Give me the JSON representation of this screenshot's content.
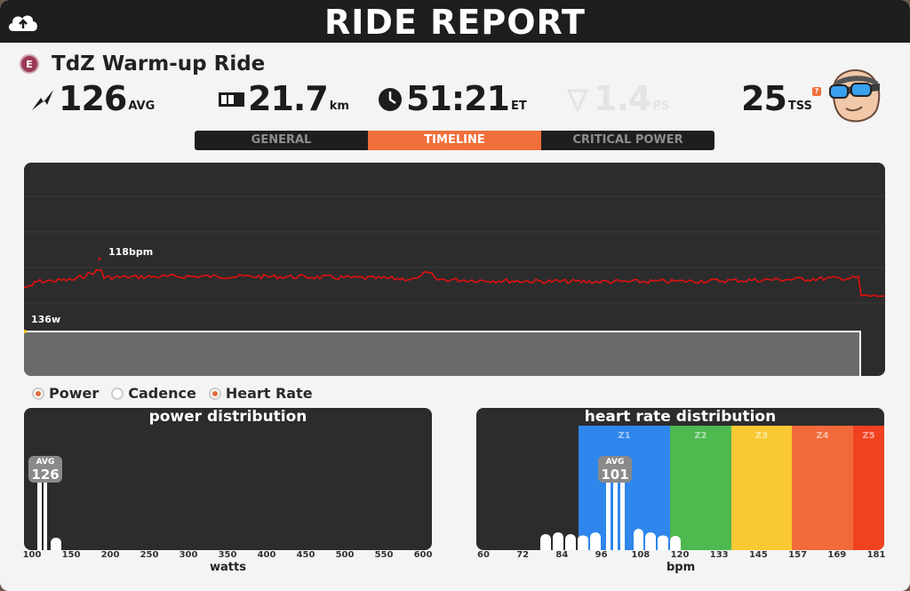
{
  "header": {
    "title": "RIDE REPORT"
  },
  "ride": {
    "badge": "E",
    "name": "TdZ Warm-up Ride"
  },
  "stats": {
    "power": {
      "value": "126",
      "unit": "AVG",
      "icon": "power-bolt-icon"
    },
    "distance": {
      "value": "21.7",
      "unit": "km",
      "icon": "odometer-icon"
    },
    "time": {
      "value": "51:21",
      "unit": "ET",
      "icon": "clock-icon"
    },
    "ps": {
      "value": "1.4",
      "unit": "PS",
      "icon": "shield-icon"
    },
    "tss": {
      "value": "25",
      "unit": "TSS",
      "info": "?"
    }
  },
  "tabs": [
    {
      "label": "GENERAL",
      "active": false
    },
    {
      "label": "TIMELINE",
      "active": true
    },
    {
      "label": "CRITICAL POWER",
      "active": false
    }
  ],
  "timeline": {
    "hr_peak_label": "118bpm",
    "power_label": "136w",
    "hr_color": "#e01010",
    "power_color": "#ffffff"
  },
  "legend": [
    {
      "label": "Power",
      "active": true
    },
    {
      "label": "Cadence",
      "active": false
    },
    {
      "label": "Heart Rate",
      "active": true
    }
  ],
  "power_dist": {
    "title": "power distribution",
    "avg_label": "AVG",
    "avg_value": "126",
    "xlabel": "watts",
    "ticks": [
      "100",
      "150",
      "200",
      "250",
      "300",
      "350",
      "400",
      "450",
      "500",
      "550",
      "600"
    ]
  },
  "hr_dist": {
    "title": "heart rate distribution",
    "avg_label": "AVG",
    "avg_value": "101",
    "xlabel": "bpm",
    "ticks": [
      "60",
      "72",
      "84",
      "96",
      "108",
      "120",
      "133",
      "145",
      "157",
      "169",
      "181"
    ],
    "zones": [
      {
        "label": "Z1",
        "color": "#2f86ec"
      },
      {
        "label": "Z2",
        "color": "#4db94f"
      },
      {
        "label": "Z3",
        "color": "#f9c933"
      },
      {
        "label": "Z4",
        "color": "#f26a3a"
      },
      {
        "label": "Z5",
        "color": "#f2411f"
      }
    ]
  }
}
